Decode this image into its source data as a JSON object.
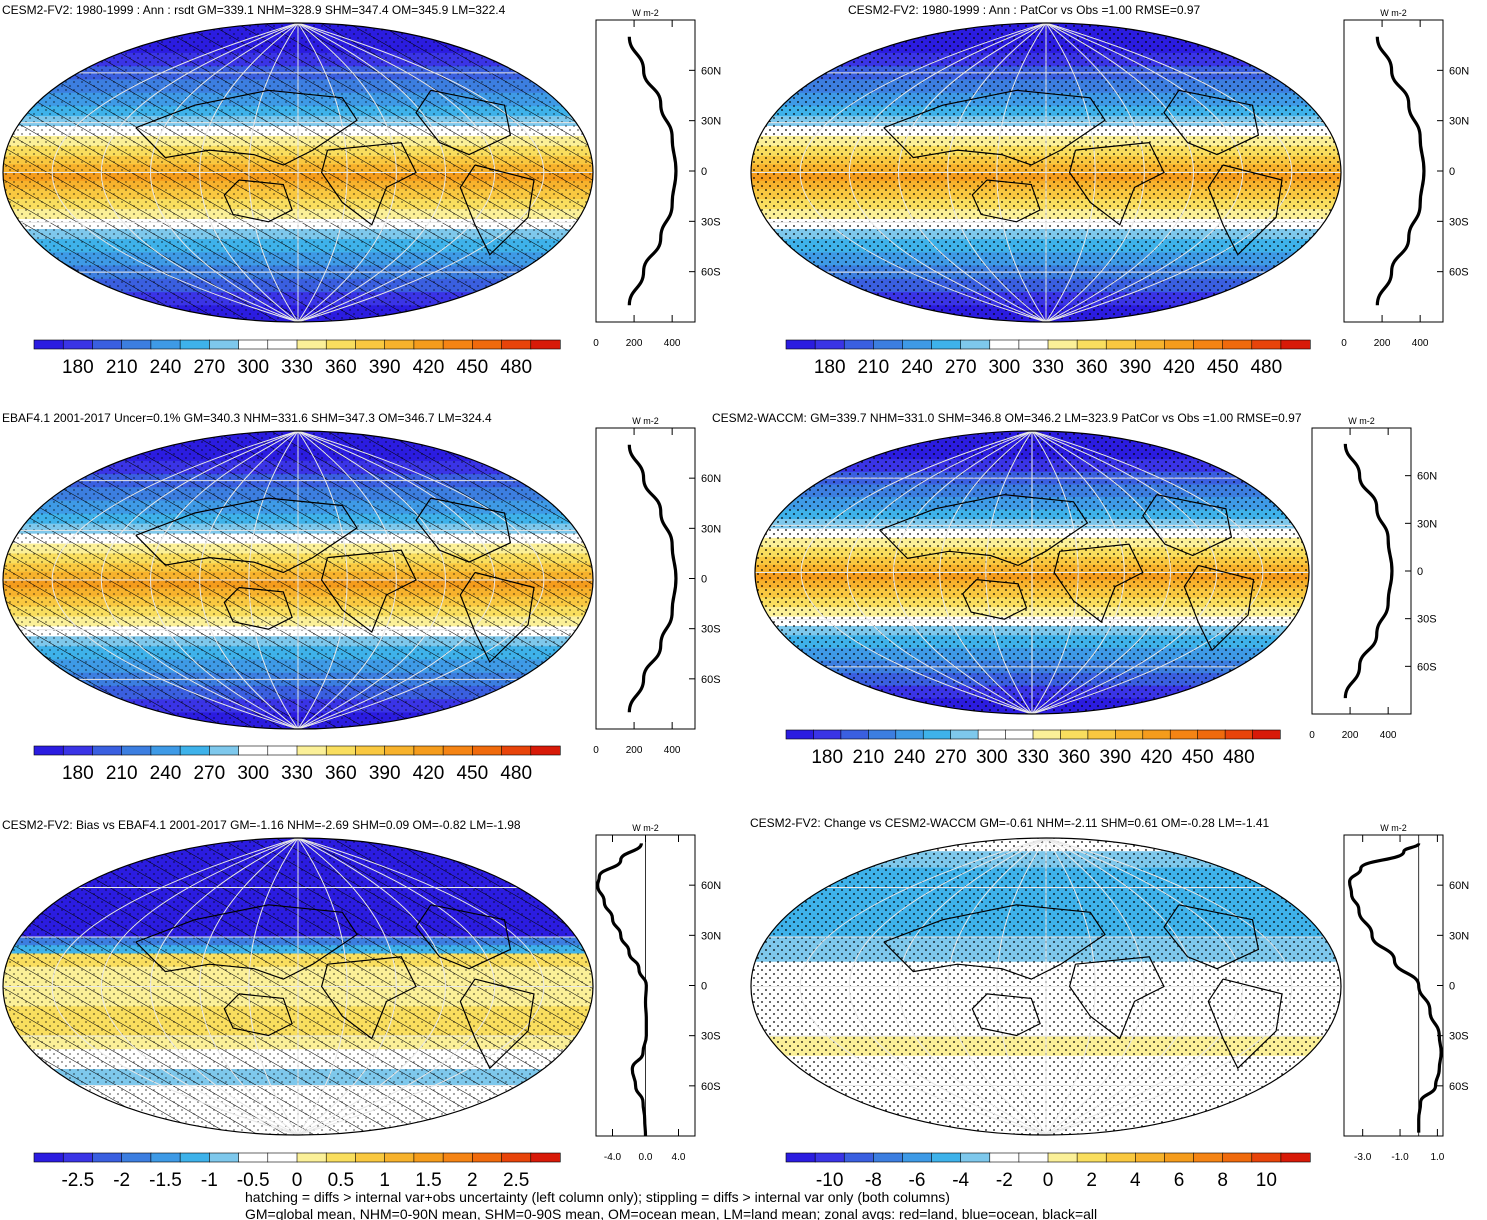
{
  "figure": {
    "footer": [
      "hatching = diffs > internal var+obs uncertainty (left column only); stippling = diffs > internal var only (both columns)",
      "GM=global mean, NHM=0-90N mean, SHM=0-90S mean, OM=ocean mean, LM=land mean; zonal avgs: red=land, blue=ocean, black=all"
    ]
  },
  "chart_data": [
    {
      "type": "heatmap",
      "panel": "p1",
      "title": "CESM2-FV2: 1980-1999 : Ann : rsdt GM=339.1 NHM=328.9 SHM=347.4 OM=345.9 LM=322.4",
      "colorbar": {
        "labels": [
          "180",
          "210",
          "240",
          "270",
          "300",
          "330",
          "360",
          "390",
          "420",
          "450",
          "480"
        ]
      },
      "zonal": {
        "unit": "W m-2",
        "xticks": [
          "0",
          "200",
          "400"
        ],
        "yticks": [
          "60N",
          "30N",
          "0",
          "30S",
          "60S"
        ],
        "lat": [
          80,
          60,
          40,
          20,
          0,
          -20,
          -40,
          -60,
          -80
        ],
        "values": [
          175,
          250,
          340,
          400,
          420,
          400,
          340,
          250,
          175
        ]
      },
      "overlay": "hatch"
    },
    {
      "type": "heatmap",
      "panel": "p2",
      "title": "CESM2-FV2: 1980-1999 : Ann : PatCor vs Obs =1.00 RMSE=0.97",
      "colorbar": {
        "labels": [
          "180",
          "210",
          "240",
          "270",
          "300",
          "330",
          "360",
          "390",
          "420",
          "450",
          "480"
        ]
      },
      "zonal": {
        "unit": "W m-2",
        "xticks": [
          "0",
          "200",
          "400"
        ],
        "yticks": [
          "60N",
          "30N",
          "0",
          "30S",
          "60S"
        ],
        "lat": [
          80,
          60,
          40,
          20,
          0,
          -20,
          -40,
          -60,
          -80
        ],
        "values": [
          175,
          250,
          340,
          400,
          420,
          400,
          340,
          250,
          175
        ]
      },
      "overlay": "stipple"
    },
    {
      "type": "heatmap",
      "panel": "p3",
      "title": "EBAF4.1 2001-2017 Uncer=0.1% GM=340.3 NHM=331.6 SHM=347.3 OM=346.7 LM=324.4",
      "colorbar": {
        "labels": [
          "180",
          "210",
          "240",
          "270",
          "300",
          "330",
          "360",
          "390",
          "420",
          "450",
          "480"
        ]
      },
      "zonal": {
        "unit": "W m-2",
        "xticks": [
          "0",
          "200",
          "400"
        ],
        "yticks": [
          "60N",
          "30N",
          "0",
          "30S",
          "60S"
        ],
        "lat": [
          80,
          60,
          40,
          20,
          0,
          -20,
          -40,
          -60,
          -80
        ],
        "values": [
          175,
          250,
          340,
          400,
          420,
          400,
          340,
          250,
          175
        ]
      },
      "overlay": "hatch"
    },
    {
      "type": "heatmap",
      "panel": "p4",
      "title": "CESM2-WACCM: GM=339.7 NHM=331.0 SHM=346.8 OM=346.2 LM=323.9 PatCor vs Obs =1.00 RMSE=0.97",
      "colorbar": {
        "labels": [
          "180",
          "210",
          "240",
          "270",
          "300",
          "330",
          "360",
          "390",
          "420",
          "450",
          "480"
        ]
      },
      "zonal": {
        "unit": "W m-2",
        "xticks": [
          "0",
          "200",
          "400"
        ],
        "yticks": [
          "60N",
          "30N",
          "0",
          "30S",
          "60S"
        ],
        "lat": [
          80,
          60,
          40,
          20,
          0,
          -20,
          -40,
          -60,
          -80
        ],
        "values": [
          175,
          250,
          340,
          400,
          420,
          400,
          340,
          250,
          175
        ]
      },
      "overlay": "stipple"
    },
    {
      "type": "heatmap",
      "panel": "p5",
      "title": "CESM2-FV2: Bias vs EBAF4.1 2001-2017 GM=-1.16 NHM=-2.69 SHM=0.09 OM=-0.82 LM=-1.98",
      "colorbar": {
        "labels": [
          "-2.5",
          "-2",
          "-1.5",
          "-1",
          "-0.5",
          "0",
          "0.5",
          "1",
          "1.5",
          "2",
          "2.5"
        ]
      },
      "zonal": {
        "unit": "W m-2",
        "xticks": [
          "-4.0",
          "0.0",
          "4.0"
        ],
        "xlim": [
          -6,
          6
        ],
        "yticks": [
          "60N",
          "30N",
          "0",
          "30S",
          "60S"
        ],
        "lat": [
          85,
          75,
          65,
          60,
          50,
          40,
          30,
          20,
          10,
          0,
          -10,
          -20,
          -30,
          -40,
          -50,
          -60,
          -70,
          -80,
          -90
        ],
        "values": [
          -0.5,
          -3.0,
          -5.6,
          -5.8,
          -5.0,
          -4.0,
          -3.0,
          -2.0,
          -0.8,
          0.1,
          0.0,
          0.1,
          0.1,
          -0.3,
          -1.6,
          -1.2,
          -0.3,
          -0.1,
          0.0
        ]
      },
      "overlay": "hatch"
    },
    {
      "type": "heatmap",
      "panel": "p6",
      "title": "CESM2-FV2: Change vs CESM2-WACCM GM=-0.61 NHM=-2.11 SHM=0.61 OM=-0.28 LM=-1.41",
      "colorbar": {
        "labels": [
          "-10",
          "-8",
          "-6",
          "-4",
          "-2",
          "0",
          "2",
          "4",
          "6",
          "8",
          "10"
        ]
      },
      "zonal": {
        "unit": "W m-2",
        "xticks": [
          "-3.0",
          "-1.0",
          "1.0"
        ],
        "xlim": [
          -4,
          1.3
        ],
        "yticks": [
          "60N",
          "30N",
          "0",
          "30S",
          "60S"
        ],
        "lat": [
          85,
          80,
          70,
          62,
          55,
          45,
          30,
          15,
          0,
          -15,
          -30,
          -40,
          -50,
          -60,
          -70,
          -80,
          -88
        ],
        "values": [
          0.0,
          -0.8,
          -3.1,
          -3.7,
          -3.6,
          -3.2,
          -2.5,
          -1.3,
          0.0,
          0.6,
          1.1,
          1.2,
          1.1,
          0.9,
          0.1,
          0.0,
          0.0
        ]
      },
      "overlay": "stipple"
    }
  ]
}
